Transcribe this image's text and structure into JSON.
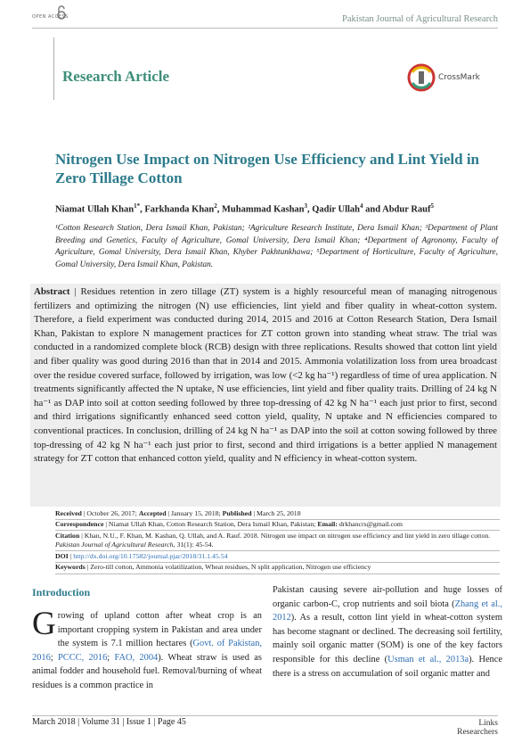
{
  "header": {
    "open_access": "OPEN ACCESS",
    "journal": "Pakistan Journal of Agricultural Research"
  },
  "article_type": "Research Article",
  "crossmark": "CrossMark",
  "title": "Nitrogen Use Impact on Nitrogen Use Efficiency and Lint Yield in Zero Tillage Cotton",
  "authors": {
    "runs": [
      {
        "text": "Niamat Ullah Khan"
      },
      {
        "sup": "1*"
      },
      {
        "text": ", Farkhanda Khan"
      },
      {
        "sup": "2"
      },
      {
        "text": ", Muhammad Kashan"
      },
      {
        "sup": "3"
      },
      {
        "text": ", Qadir Ullah"
      },
      {
        "sup": "4"
      },
      {
        "text": " and Abdur Rauf"
      },
      {
        "sup": "5"
      }
    ]
  },
  "affiliations": "¹Cotton Research Station, Dera Ismail Khan, Pakistan; ²Agriculture Research Institute, Dera Ismail Khan; ³Department of Plant Breeding and Genetics, Faculty of Agriculture, Gomal University, Dera Ismail Khan; ⁴Department of Agronomy, Faculty of Agriculture, Gomal University, Dera Ismail Khan, Khyber Pakhtunkhawa; ⁵Department of Horticulture, Faculty of Agriculture, Gomal University, Dera Ismail Khan, Pakistan.",
  "abstract": {
    "runs": [
      {
        "bold": "Abstract"
      },
      {
        "text": " | Residues retention in zero tillage (ZT) system is a highly resourceful mean of managing nitrogenous fertilizers and optimizing the nitrogen (N) use efficiencies, lint yield and fiber quality in wheat-cotton system. Therefore, a field experiment was conducted during 2014, 2015 and 2016 at Cotton Research Station, Dera Ismail Khan, Pakistan to explore N management practices for ZT cotton grown into standing wheat straw. The trial was conducted in a randomized complete block (RCB) design with three replications. Results showed that cotton lint yield and fiber quality was good during 2016 than that in 2014 and 2015. Ammonia volatilization loss from urea broadcast over the residue covered surface, followed by irrigation, was low (<2 kg ha⁻¹) regardless of time of urea application. N treatments significantly affected the N uptake, N use efficiencies, lint yield and fiber quality traits. Drilling of 24 kg N ha⁻¹ as DAP into soil at cotton seeding followed by three top-dressing of 42 kg N ha⁻¹ each just prior to first, second and third irrigations significantly enhanced seed cotton yield, quality, N uptake and N efficiencies compared to conventional practices. In conclusion, drilling of 24 kg N ha⁻¹ as DAP into the soil at cotton sowing followed by three top-dressing of 42 kg N ha⁻¹ each just prior to first, second and third irrigations is a better applied N management strategy for ZT cotton that enhanced cotton yield, quality and N efficiency in wheat-cotton system."
      }
    ]
  },
  "meta": [
    {
      "runs": [
        {
          "bold": "Received"
        },
        {
          "text": " | October 26, 2017; "
        },
        {
          "bold": "Accepted"
        },
        {
          "text": " | January 15, 2018; "
        },
        {
          "bold": "Published"
        },
        {
          "text": " | March 25, 2018"
        }
      ]
    },
    {
      "runs": [
        {
          "bold": "Correspondence"
        },
        {
          "text": " | Niamat Ullah Khan, Cotton Research Station, Dera Ismail Khan, Pakistan; "
        },
        {
          "bold": "Email:"
        },
        {
          "text": " drkhancrs@gmail.com"
        }
      ]
    },
    {
      "runs": [
        {
          "bold": "Citation"
        },
        {
          "text": " | Khan, N.U., F. Khan, M. Kashan, Q. Ullah, and A. Rauf. 2018. Nitrogen use impact on nitrogen use efficiency and lint yield in zero tillage cotton. "
        },
        {
          "italic": "Pakistan Journal of Agricultural Research"
        },
        {
          "text": ", 31(1): 45-54."
        }
      ]
    },
    {
      "runs": [
        {
          "bold": "DOI"
        },
        {
          "text": " | "
        },
        {
          "link": "http://dx.doi.org/10.17582/journal.pjar/2018/31.1.45.54"
        }
      ]
    },
    {
      "runs": [
        {
          "bold": "Keywords"
        },
        {
          "text": " | Zero-till cotton, Ammonia volatilization, Wheat residues, N split application, Nitrogen use efficiency"
        }
      ]
    }
  ],
  "introduction": {
    "heading": "Introduction",
    "columns": [
      {
        "runs": [
          {
            "dropcap": "G"
          },
          {
            "text": "rowing of upland cotton after wheat crop is an important cropping system in Pakistan and area under the system is 7.1 million hectares ("
          },
          {
            "cite": "Govt. of Pakistan, 2016"
          },
          {
            "text": "; "
          },
          {
            "cite": "PCCC, 2016"
          },
          {
            "text": "; "
          },
          {
            "cite": "FAO, 2004"
          },
          {
            "text": "). Wheat straw is used as animal fodder and household fuel. Removal/burning of wheat residues is a common practice in"
          }
        ]
      },
      {
        "runs": [
          {
            "text": "Pakistan causing severe air-pollution and huge losses of organic carbon-C, crop nutrients and soil biota ("
          },
          {
            "cite": "Zhang et al., 2012"
          },
          {
            "text": "). As a result, cotton lint yield in wheat-cotton system has become stagnant or declined. The decreasing soil fertility, mainly soil organic matter (SOM) is one of the key factors responsible for this decline ("
          },
          {
            "cite": "Usman et al., 2013a"
          },
          {
            "text": "). Hence there is a stress on accumulation of soil organic matter and"
          }
        ]
      }
    ]
  },
  "footer": {
    "issue": "March 2018 | Volume 31 | Issue 1 | Page 45",
    "publisher": [
      "Links",
      "Researchers"
    ]
  }
}
